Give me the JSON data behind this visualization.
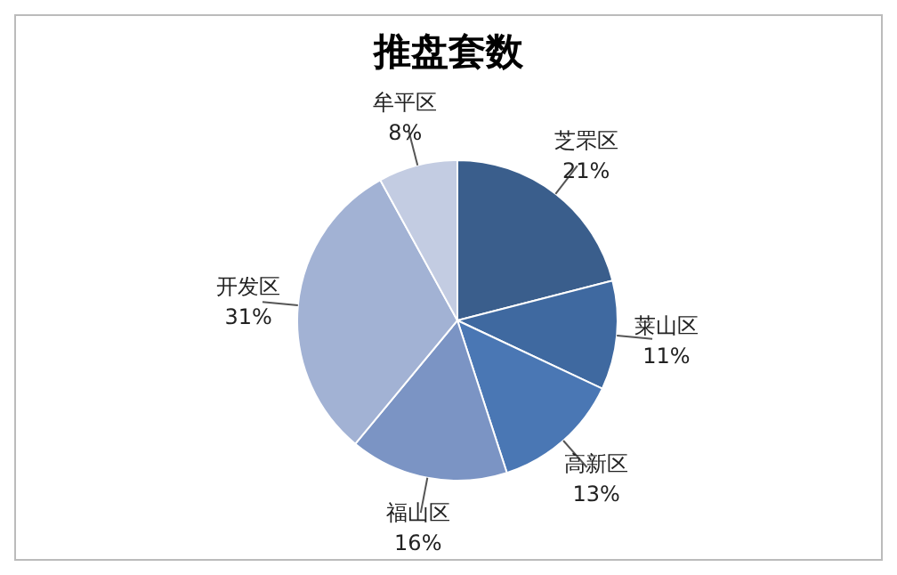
{
  "chart_data": {
    "type": "pie",
    "title": "推盘套数",
    "categories": [
      "芝罘区",
      "莱山区",
      "高新区",
      "福山区",
      "开发区",
      "牟平区"
    ],
    "values": [
      21,
      11,
      13,
      16,
      31,
      8
    ],
    "colors": [
      "#3a5e8c",
      "#3f69a0",
      "#4a77b4",
      "#7b94c4",
      "#a2b2d4",
      "#c3cce2"
    ],
    "value_labels": [
      "21%",
      "11%",
      "13%",
      "16%",
      "31%",
      "8%"
    ],
    "legend": false
  }
}
